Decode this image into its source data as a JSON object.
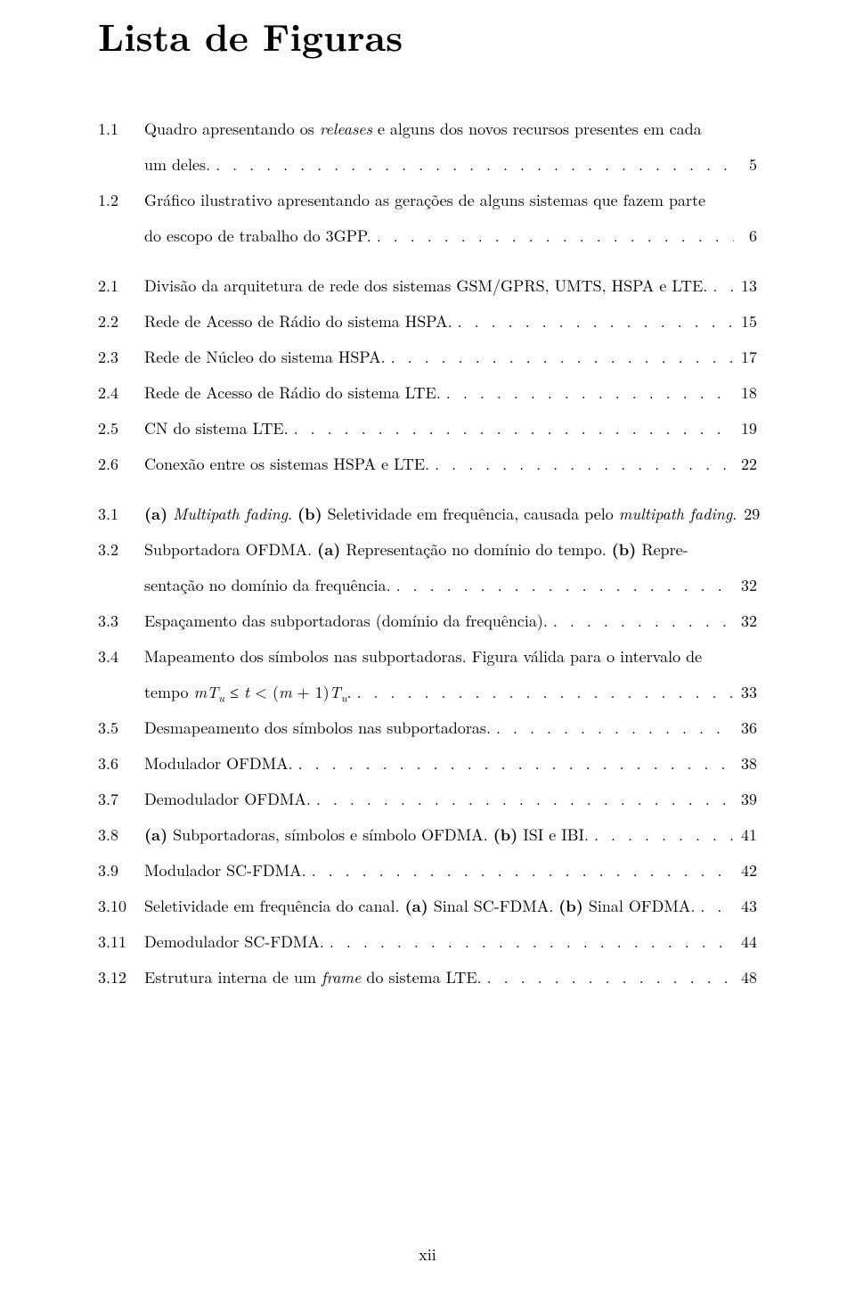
{
  "title": "Lista de Figuras",
  "page_number": "xii",
  "entries": [
    {
      "num": "1.1",
      "segments": [
        {
          "type": "line",
          "parts": [
            {
              "t": "Quadro apresentando os "
            },
            {
              "t": "releases",
              "style": "italic"
            },
            {
              "t": " e alguns dos novos recursos presentes em cada"
            }
          ]
        },
        {
          "type": "last",
          "parts": [
            {
              "t": "um deles."
            }
          ],
          "page": "5"
        }
      ]
    },
    {
      "num": "1.2",
      "segments": [
        {
          "type": "line",
          "parts": [
            {
              "t": "Gráfico ilustrativo apresentando as gerações de alguns sistemas que fazem parte"
            }
          ]
        },
        {
          "type": "last",
          "parts": [
            {
              "t": "do escopo de trabalho do 3GPP."
            }
          ],
          "page": "6"
        }
      ]
    },
    {
      "gap": true
    },
    {
      "num": "2.1",
      "segments": [
        {
          "type": "last",
          "parts": [
            {
              "t": "Divisão da arquitetura de rede dos sistemas GSM/GPRS, UMTS, HSPA e LTE. "
            }
          ],
          "page": "13"
        }
      ]
    },
    {
      "num": "2.2",
      "segments": [
        {
          "type": "last",
          "parts": [
            {
              "t": "Rede de Acesso de Rádio do sistema HSPA."
            }
          ],
          "page": "15"
        }
      ]
    },
    {
      "num": "2.3",
      "segments": [
        {
          "type": "last",
          "parts": [
            {
              "t": "Rede de Núcleo do sistema HSPA."
            }
          ],
          "page": "17"
        }
      ]
    },
    {
      "num": "2.4",
      "segments": [
        {
          "type": "last",
          "parts": [
            {
              "t": "Rede de Acesso de Rádio do sistema LTE."
            }
          ],
          "page": "18"
        }
      ]
    },
    {
      "num": "2.5",
      "segments": [
        {
          "type": "last",
          "parts": [
            {
              "t": "CN do sistema LTE."
            }
          ],
          "page": "19"
        }
      ]
    },
    {
      "num": "2.6",
      "segments": [
        {
          "type": "last",
          "parts": [
            {
              "t": "Conexão entre os sistemas HSPA e LTE."
            }
          ],
          "page": "22"
        }
      ]
    },
    {
      "gap": true
    },
    {
      "num": "3.1",
      "segments": [
        {
          "type": "last",
          "parts": [
            {
              "t": "(a)",
              "style": "bold"
            },
            {
              "t": " "
            },
            {
              "t": "Multipath fading",
              "style": "italic"
            },
            {
              "t": ". "
            },
            {
              "t": "(b)",
              "style": "bold"
            },
            {
              "t": " Seletividade em frequência, causada pelo "
            },
            {
              "t": "multipath fading",
              "style": "italic"
            },
            {
              "t": "."
            }
          ],
          "page": "29",
          "nodots": true
        }
      ]
    },
    {
      "num": "3.2",
      "segments": [
        {
          "type": "line",
          "parts": [
            {
              "t": "Subportadora OFDMA. "
            },
            {
              "t": "(a)",
              "style": "bold"
            },
            {
              "t": " Representação no domínio do tempo. "
            },
            {
              "t": "(b)",
              "style": "bold"
            },
            {
              "t": " Repre-"
            }
          ]
        },
        {
          "type": "last",
          "parts": [
            {
              "t": "sentação no domínio da frequência."
            }
          ],
          "page": "32"
        }
      ]
    },
    {
      "num": "3.3",
      "segments": [
        {
          "type": "last",
          "parts": [
            {
              "t": "Espaçamento das subportadoras (domínio da frequência)."
            }
          ],
          "page": "32"
        }
      ]
    },
    {
      "num": "3.4",
      "segments": [
        {
          "type": "line",
          "parts": [
            {
              "t": "Mapeamento dos símbolos nas subportadoras. Figura válida para o intervalo de"
            }
          ]
        },
        {
          "type": "last",
          "parts": [
            {
              "t": "tempo ",
              "style": ""
            },
            {
              "t": "mT",
              "style": "italic"
            },
            {
              "t": "u",
              "style": "italic sub"
            },
            {
              "t": " ≤ "
            },
            {
              "t": "t",
              "style": "italic"
            },
            {
              "t": " < ("
            },
            {
              "t": "m",
              "style": "italic"
            },
            {
              "t": " + 1)"
            },
            {
              "t": "T",
              "style": "italic"
            },
            {
              "t": "u",
              "style": "italic sub"
            },
            {
              "t": "."
            }
          ],
          "page": "33"
        }
      ]
    },
    {
      "num": "3.5",
      "segments": [
        {
          "type": "last",
          "parts": [
            {
              "t": "Desmapeamento dos símbolos nas subportadoras."
            }
          ],
          "page": "36"
        }
      ]
    },
    {
      "num": "3.6",
      "segments": [
        {
          "type": "last",
          "parts": [
            {
              "t": "Modulador OFDMA."
            }
          ],
          "page": "38"
        }
      ]
    },
    {
      "num": "3.7",
      "segments": [
        {
          "type": "last",
          "parts": [
            {
              "t": "Demodulador OFDMA."
            }
          ],
          "page": "39"
        }
      ]
    },
    {
      "num": "3.8",
      "segments": [
        {
          "type": "last",
          "parts": [
            {
              "t": "(a)",
              "style": "bold"
            },
            {
              "t": " Subportadoras, símbolos e símbolo OFDMA. "
            },
            {
              "t": "(b)",
              "style": "bold"
            },
            {
              "t": " ISI e IBI."
            }
          ],
          "page": "41"
        }
      ]
    },
    {
      "num": "3.9",
      "segments": [
        {
          "type": "last",
          "parts": [
            {
              "t": "Modulador SC-FDMA."
            }
          ],
          "page": "42"
        }
      ]
    },
    {
      "num": "3.10",
      "segments": [
        {
          "type": "last",
          "parts": [
            {
              "t": "Seletividade em frequência do canal. "
            },
            {
              "t": "(a)",
              "style": "bold"
            },
            {
              "t": " Sinal SC-FDMA. "
            },
            {
              "t": "(b)",
              "style": "bold"
            },
            {
              "t": " Sinal OFDMA. "
            }
          ],
          "page": "43"
        }
      ]
    },
    {
      "num": "3.11",
      "segments": [
        {
          "type": "last",
          "parts": [
            {
              "t": "Demodulador SC-FDMA."
            }
          ],
          "page": "44"
        }
      ]
    },
    {
      "num": "3.12",
      "segments": [
        {
          "type": "last",
          "parts": [
            {
              "t": "Estrutura interna de um "
            },
            {
              "t": "frame",
              "style": "italic"
            },
            {
              "t": " do sistema LTE."
            }
          ],
          "page": "48"
        }
      ]
    }
  ]
}
